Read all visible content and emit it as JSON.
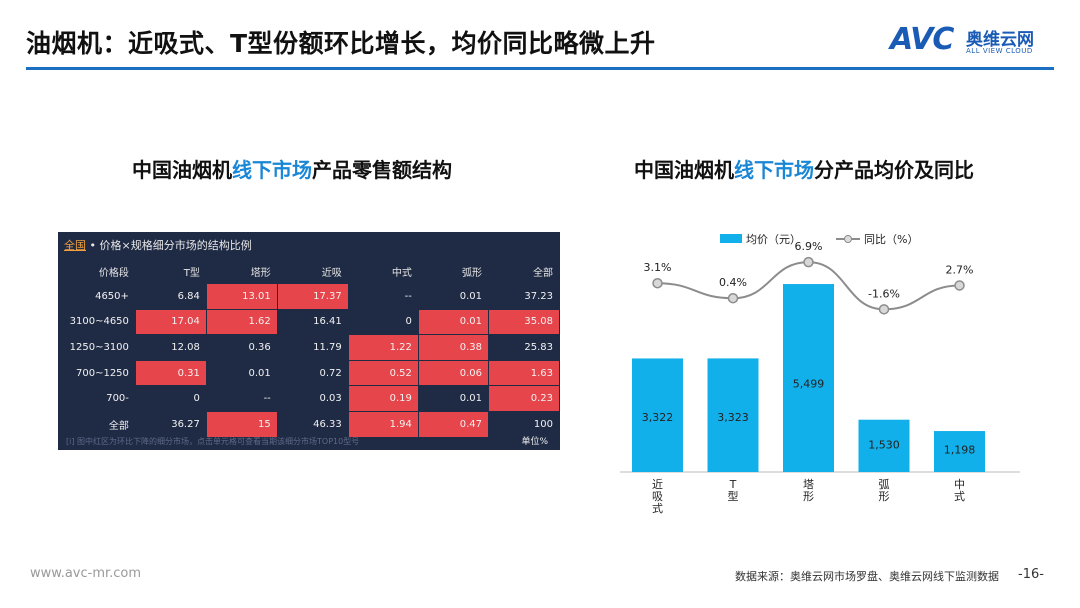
{
  "header": {
    "title": "油烟机：近吸式、T型份额环比增长，均价同比略微上升"
  },
  "logo": {
    "mark": "AVC",
    "cn": "奥维云网",
    "en": "ALL VIEW CLOUD"
  },
  "left": {
    "title_pre": "中国油烟机",
    "title_hl": "线下市场",
    "title_post": "产品零售额结构",
    "panel_tag": "全国",
    "panel_title": " • 价格×规格细分市场的结构比例",
    "note": "[i] 图中红区为环比下降的细分市场，点击单元格可查看当期该细分市场TOP10型号",
    "unit": "单位%"
  },
  "right": {
    "title_pre": "中国油烟机",
    "title_hl": "线下市场",
    "title_post": "分产品均价及同比"
  },
  "footer": {
    "url": "www.avc-mr.com",
    "source": "数据来源：奥维云网市场罗盘、奥维云网线下监测数据",
    "page": "-16-"
  },
  "colors": {
    "accent": "#1a6fc0",
    "bar": "#12b0ea",
    "line": "#8c8c8c",
    "heat_bg": "#1f2a44",
    "heat_red": "#e6454b"
  },
  "chart_data": [
    {
      "type": "table",
      "columns": [
        "价格段",
        "T型",
        "塔形",
        "近吸",
        "中式",
        "弧形",
        "全部"
      ],
      "rows": [
        {
          "cells": [
            "4650+",
            "6.84",
            "13.01",
            "17.37",
            "--",
            "0.01",
            "37.23"
          ],
          "red": [
            false,
            false,
            true,
            true,
            false,
            false,
            false
          ]
        },
        {
          "cells": [
            "3100~4650",
            "17.04",
            "1.62",
            "16.41",
            "0",
            "0.01",
            "35.08"
          ],
          "red": [
            false,
            true,
            true,
            false,
            false,
            true,
            true
          ]
        },
        {
          "cells": [
            "1250~3100",
            "12.08",
            "0.36",
            "11.79",
            "1.22",
            "0.38",
            "25.83"
          ],
          "red": [
            false,
            false,
            false,
            false,
            true,
            true,
            false
          ]
        },
        {
          "cells": [
            "700~1250",
            "0.31",
            "0.01",
            "0.72",
            "0.52",
            "0.06",
            "1.63"
          ],
          "red": [
            false,
            true,
            false,
            false,
            true,
            true,
            true
          ]
        },
        {
          "cells": [
            "700-",
            "0",
            "--",
            "0.03",
            "0.19",
            "0.01",
            "0.23"
          ],
          "red": [
            false,
            false,
            false,
            false,
            true,
            false,
            true
          ]
        },
        {
          "cells": [
            "全部",
            "36.27",
            "15",
            "46.33",
            "1.94",
            "0.47",
            "100"
          ],
          "red": [
            false,
            false,
            true,
            false,
            true,
            true,
            false
          ]
        }
      ]
    },
    {
      "type": "bar",
      "categories": [
        "近吸式",
        "T型",
        "塔形",
        "弧形",
        "中式"
      ],
      "series": [
        {
          "name": "均价（元）",
          "type": "bar",
          "values": [
            3322,
            3323,
            5499,
            1530,
            1198
          ],
          "labels": [
            "3,322",
            "3,323",
            "5,499",
            "1,530",
            "1,198"
          ]
        },
        {
          "name": "同比（%）",
          "type": "line",
          "values": [
            3.1,
            0.4,
            6.9,
            -1.6,
            2.7
          ],
          "labels": [
            "3.1%",
            "0.4%",
            "6.9%",
            "-1.6%",
            "2.7%"
          ]
        }
      ],
      "ylim": [
        0,
        5500
      ],
      "y2lim": [
        -10,
        8
      ],
      "legend": "top",
      "grid": false
    }
  ]
}
